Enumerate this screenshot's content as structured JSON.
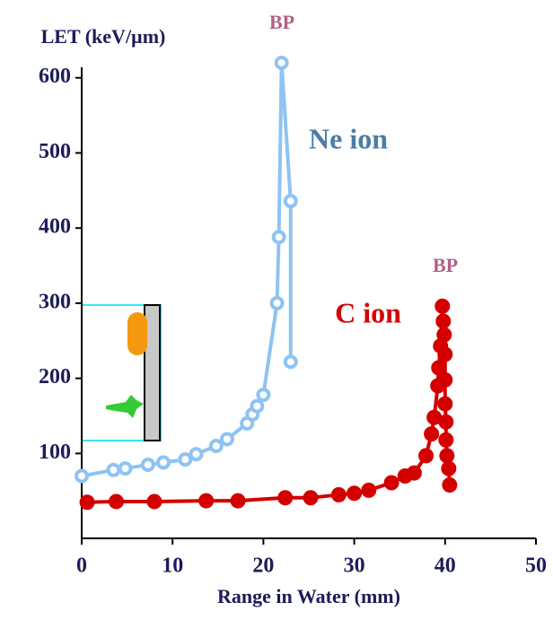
{
  "chart_data": {
    "type": "line",
    "y_label": "LET (keV/µm)",
    "x_label": "Range in Water (mm)",
    "annotations": [
      "BP",
      "Ne ion",
      "BP",
      "C ion"
    ],
    "xlim": [
      0,
      50
    ],
    "xticks": [
      0,
      10,
      20,
      30,
      40,
      50
    ],
    "ylim": [
      -13,
      614
    ],
    "yticks": [
      100,
      200,
      300,
      400,
      500,
      600
    ],
    "series": [
      {
        "name": "Ne ion",
        "color": "#8ec3f2",
        "x": [
          0,
          3.5,
          4.8,
          7.3,
          9,
          11.4,
          12.6,
          14.8,
          16,
          18.2,
          18.8,
          19.3,
          20,
          21.5,
          21.7,
          22,
          23,
          23
        ],
        "values": [
          70,
          78,
          80,
          85,
          88,
          92,
          99,
          110,
          119,
          140,
          152,
          163,
          178,
          300,
          388,
          620,
          436,
          222
        ]
      },
      {
        "name": "C ion",
        "color": "#d40000",
        "x": [
          0.6,
          3.8,
          8,
          13.7,
          17.2,
          22.4,
          25.2,
          28.3,
          30,
          31.6,
          34.1,
          35.6,
          36.6,
          37.9,
          38.5,
          38.8,
          39.2,
          39.3,
          39.5,
          39.7,
          39.8,
          39.9,
          40,
          40,
          40,
          40.1,
          40.1,
          40.2,
          40.4,
          40.5
        ],
        "values": [
          35,
          36,
          36,
          37,
          37,
          41,
          41,
          45,
          47,
          51,
          61,
          70,
          74,
          97,
          126,
          148,
          190,
          214,
          243,
          296,
          276,
          258,
          232,
          198,
          166,
          142,
          118,
          97,
          80,
          58
        ]
      }
    ]
  }
}
